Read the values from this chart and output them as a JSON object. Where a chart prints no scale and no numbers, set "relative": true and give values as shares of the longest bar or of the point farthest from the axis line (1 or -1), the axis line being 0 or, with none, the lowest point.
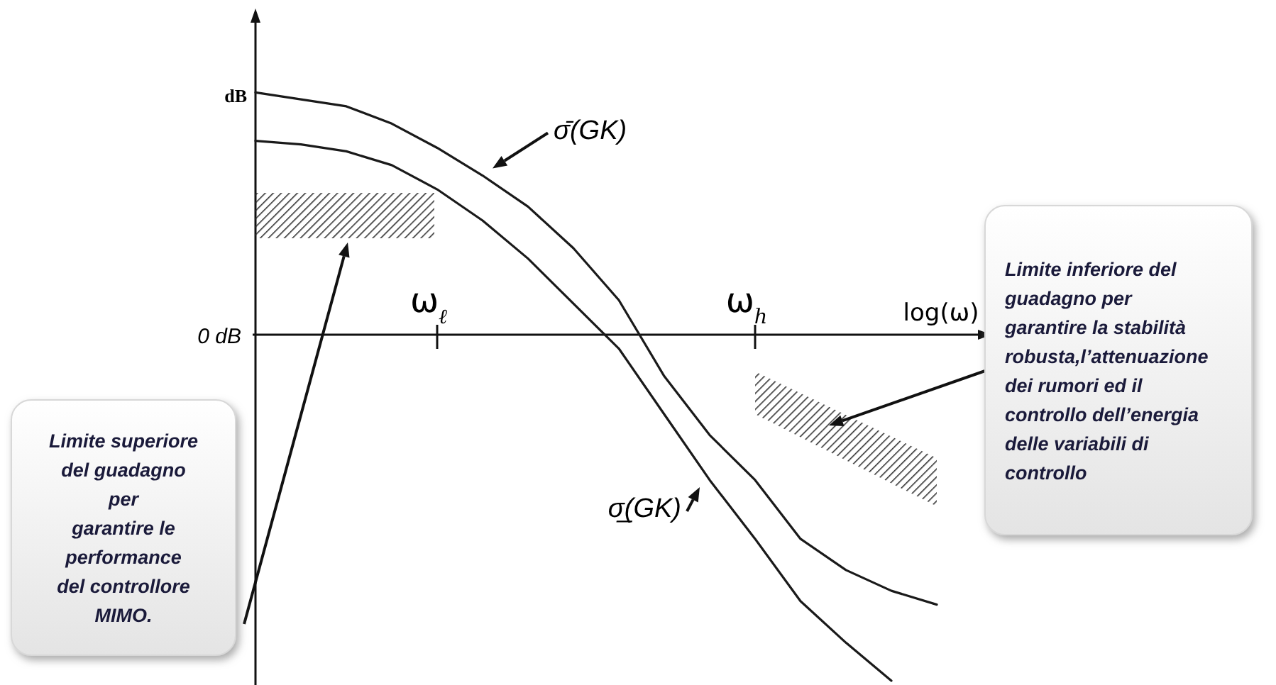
{
  "chart_data": {
    "type": "line",
    "relative": true,
    "ylabel": "dB",
    "xlabel": "log(ω)",
    "categories": [
      null,
      null,
      null,
      null,
      "ω$_{ℓ}$",
      null,
      null,
      null,
      null,
      null,
      null,
      "ω$_{h}$",
      null,
      null,
      null,
      null
    ],
    "series": [
      {
        "name": "σ̄(GK)",
        "color": "#1a1a1a",
        "values": [
          0.7,
          0.68,
          0.66,
          0.61,
          0.54,
          0.46,
          0.37,
          0.25,
          0.1,
          -0.12,
          -0.29,
          -0.42,
          -0.59,
          -0.68,
          -0.74,
          -0.78
        ]
      },
      {
        "name": "σ̲(GK)",
        "color": "#1a1a1a",
        "values": [
          0.56,
          0.55,
          0.53,
          0.49,
          0.42,
          0.33,
          0.22,
          0.09,
          -0.04,
          -0.23,
          -0.42,
          -0.59,
          -0.77,
          -0.89,
          -1,
          null
        ]
      }
    ],
    "annotations": [
      "0 dB",
      "Limite superiore\ndel guadagno\nper\ngarantire le\nperformance\ndel controllore\nMIMO.",
      "Limite inferiore del\nguadagno per\ngarantire la stabilità\nrobusta,l’attenuazione\ndei rumori ed il\ncontrollo dell’energia\ndelle variabili di\ncontrollo"
    ],
    "marker": "none",
    "line_style": "solid"
  }
}
